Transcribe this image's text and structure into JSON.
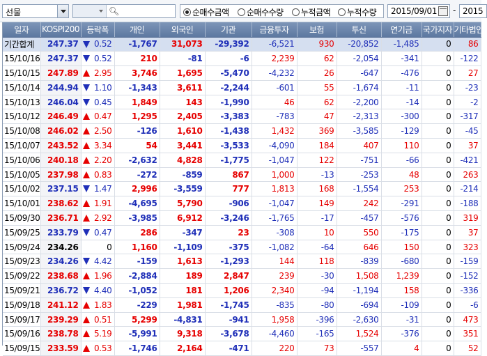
{
  "toolbar": {
    "market_select": "선물",
    "search_placeholder": "",
    "radios": [
      {
        "label": "순매수금액",
        "selected": true
      },
      {
        "label": "순매수수량",
        "selected": false
      },
      {
        "label": "누적금액",
        "selected": false
      },
      {
        "label": "누적수량",
        "selected": false
      }
    ],
    "start_date": "2015/09/01",
    "range_dash": "-",
    "end_date": "2015"
  },
  "table": {
    "headers": [
      "일자",
      "KOSPI200",
      "등락폭",
      "개인",
      "외국인",
      "기관",
      "금융투자",
      "보험",
      "투신",
      "연기금",
      "국가지자",
      "기타법인"
    ],
    "rows": [
      {
        "date": "기간합계",
        "kospi": "247.37",
        "dir": "dn",
        "chg": "0.52",
        "v": [
          "-1,767",
          "31,073",
          "-29,392",
          "-6,521",
          "930",
          "-20,852",
          "-1,485",
          "0",
          "86"
        ],
        "summary": true
      },
      {
        "date": "15/10/16",
        "kospi": "247.37",
        "dir": "dn",
        "chg": "0.52",
        "v": [
          "210",
          "-81",
          "-6",
          "2,239",
          "62",
          "-2,054",
          "-341",
          "0",
          "-122"
        ]
      },
      {
        "date": "15/10/15",
        "kospi": "247.89",
        "dir": "up",
        "chg": "2.95",
        "v": [
          "3,746",
          "1,695",
          "-5,470",
          "-4,232",
          "26",
          "-647",
          "-476",
          "0",
          "27"
        ]
      },
      {
        "date": "15/10/14",
        "kospi": "244.94",
        "dir": "dn",
        "chg": "1.10",
        "v": [
          "-1,343",
          "3,611",
          "-2,244",
          "-601",
          "55",
          "-1,674",
          "-11",
          "0",
          "-23"
        ]
      },
      {
        "date": "15/10/13",
        "kospi": "246.04",
        "dir": "dn",
        "chg": "0.45",
        "v": [
          "1,849",
          "143",
          "-1,990",
          "46",
          "62",
          "-2,200",
          "-14",
          "0",
          "-2"
        ]
      },
      {
        "date": "15/10/12",
        "kospi": "246.49",
        "dir": "up",
        "chg": "0.47",
        "v": [
          "1,295",
          "2,405",
          "-3,383",
          "-783",
          "47",
          "-2,313",
          "-300",
          "0",
          "-317"
        ]
      },
      {
        "date": "15/10/08",
        "kospi": "246.02",
        "dir": "up",
        "chg": "2.50",
        "v": [
          "-126",
          "1,610",
          "-1,438",
          "1,432",
          "369",
          "-3,585",
          "-129",
          "0",
          "-45"
        ]
      },
      {
        "date": "15/10/07",
        "kospi": "243.52",
        "dir": "up",
        "chg": "3.34",
        "v": [
          "54",
          "3,441",
          "-3,533",
          "-4,090",
          "184",
          "407",
          "110",
          "0",
          "37"
        ]
      },
      {
        "date": "15/10/06",
        "kospi": "240.18",
        "dir": "up",
        "chg": "2.20",
        "v": [
          "-2,632",
          "4,828",
          "-1,775",
          "-1,047",
          "122",
          "-751",
          "-66",
          "0",
          "-421"
        ]
      },
      {
        "date": "15/10/05",
        "kospi": "237.98",
        "dir": "up",
        "chg": "0.83",
        "v": [
          "-272",
          "-859",
          "867",
          "1,000",
          "-13",
          "-253",
          "48",
          "0",
          "263"
        ]
      },
      {
        "date": "15/10/02",
        "kospi": "237.15",
        "dir": "dn",
        "chg": "1.47",
        "v": [
          "2,996",
          "-3,559",
          "777",
          "1,813",
          "168",
          "-1,554",
          "253",
          "0",
          "-214"
        ]
      },
      {
        "date": "15/10/01",
        "kospi": "238.62",
        "dir": "up",
        "chg": "1.91",
        "v": [
          "-4,695",
          "5,790",
          "-906",
          "-1,047",
          "149",
          "242",
          "-291",
          "0",
          "-188"
        ]
      },
      {
        "date": "15/09/30",
        "kospi": "236.71",
        "dir": "up",
        "chg": "2.92",
        "v": [
          "-3,985",
          "6,912",
          "-3,246",
          "-1,765",
          "-17",
          "-457",
          "-576",
          "0",
          "319"
        ]
      },
      {
        "date": "15/09/25",
        "kospi": "233.79",
        "dir": "dn",
        "chg": "0.47",
        "v": [
          "286",
          "-347",
          "23",
          "-308",
          "10",
          "550",
          "-175",
          "0",
          "37"
        ]
      },
      {
        "date": "15/09/24",
        "kospi": "234.26",
        "dir": "",
        "chg": "0",
        "v": [
          "1,160",
          "-1,109",
          "-375",
          "-1,082",
          "-64",
          "646",
          "150",
          "0",
          "323"
        ]
      },
      {
        "date": "15/09/23",
        "kospi": "234.26",
        "dir": "dn",
        "chg": "4.42",
        "v": [
          "-159",
          "1,613",
          "-1,293",
          "144",
          "118",
          "-839",
          "-680",
          "0",
          "-159"
        ]
      },
      {
        "date": "15/09/22",
        "kospi": "238.68",
        "dir": "up",
        "chg": "1.96",
        "v": [
          "-2,884",
          "189",
          "2,847",
          "239",
          "-30",
          "1,508",
          "1,239",
          "0",
          "-152"
        ]
      },
      {
        "date": "15/09/21",
        "kospi": "236.72",
        "dir": "dn",
        "chg": "4.40",
        "v": [
          "-1,052",
          "181",
          "1,206",
          "2,340",
          "-94",
          "-1,194",
          "158",
          "0",
          "-336"
        ]
      },
      {
        "date": "15/09/18",
        "kospi": "241.12",
        "dir": "up",
        "chg": "1.83",
        "v": [
          "-229",
          "1,981",
          "-1,745",
          "-835",
          "-80",
          "-694",
          "-109",
          "0",
          "-6"
        ]
      },
      {
        "date": "15/09/17",
        "kospi": "239.29",
        "dir": "up",
        "chg": "0.51",
        "v": [
          "5,299",
          "-4,831",
          "-941",
          "1,958",
          "-396",
          "-2,630",
          "-31",
          "0",
          "473"
        ]
      },
      {
        "date": "15/09/16",
        "kospi": "238.78",
        "dir": "up",
        "chg": "5.19",
        "v": [
          "-5,991",
          "9,318",
          "-3,678",
          "-4,460",
          "-165",
          "1,524",
          "-376",
          "0",
          "351"
        ]
      },
      {
        "date": "15/09/15",
        "kospi": "233.59",
        "dir": "up",
        "chg": "0.53",
        "v": [
          "-1,746",
          "2,164",
          "-471",
          "220",
          "73",
          "-557",
          "4",
          "0",
          "52"
        ]
      }
    ]
  },
  "colors": {
    "up": "#e60000",
    "down": "#1f2fb8",
    "header_bg": "#6d86ab",
    "summary_bg": "#d5dff0"
  }
}
